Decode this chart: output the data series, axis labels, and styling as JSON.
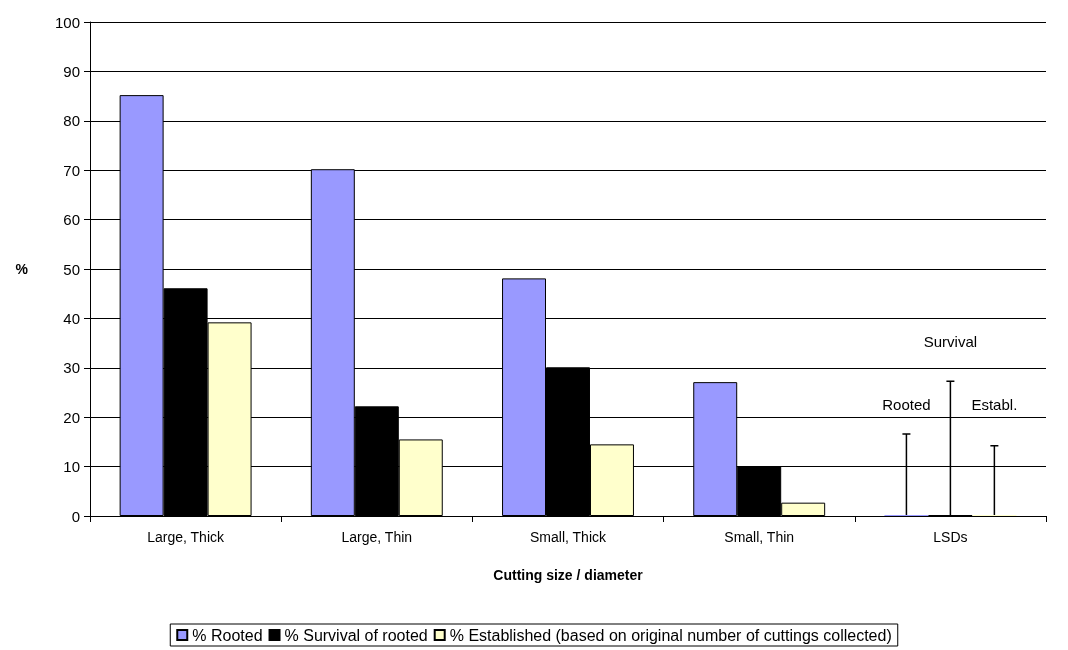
{
  "chart_data": {
    "type": "bar",
    "xlabel": "Cutting size / diameter",
    "ylabel": "%",
    "categories": [
      "Large, Thick",
      "Large, Thin",
      "Small, Thick",
      "Small, Thin",
      "LSDs"
    ],
    "series": [
      {
        "name": "% Rooted",
        "color": "#9999ff",
        "values": [
          85.2,
          70.2,
          48.1,
          27.1,
          0
        ],
        "errors": [
          null,
          null,
          null,
          null,
          [
            0,
            16.6
          ]
        ]
      },
      {
        "name": "% Survival of rooted",
        "color": "#000000",
        "values": [
          46.1,
          22.2,
          30.1,
          10.1,
          0
        ],
        "errors": [
          null,
          null,
          null,
          null,
          [
            0,
            27.3
          ]
        ]
      },
      {
        "name": "% Established (based on original number of cuttings collected)",
        "color": "#ffffcc",
        "values": [
          39.2,
          15.5,
          14.5,
          2.7,
          0
        ],
        "errors": [
          null,
          null,
          null,
          null,
          [
            0,
            14.2
          ]
        ]
      }
    ],
    "annotations": [
      "Rooted",
      "Survival",
      "Establ."
    ],
    "ylim": [
      0,
      100
    ],
    "yticks": [
      0,
      10,
      20,
      30,
      40,
      50,
      60,
      70,
      80,
      90,
      100
    ],
    "grid": "y",
    "legend": "bottom"
  }
}
